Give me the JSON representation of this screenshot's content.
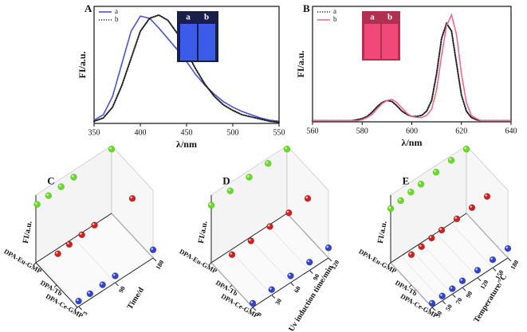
{
  "chart_data": [
    {
      "type": "line",
      "label": "A",
      "x_label": "λ/nm",
      "y_label": "FI/a.u.",
      "inset_labels": [
        "a",
        "b"
      ],
      "xlim": [
        350,
        550
      ],
      "xticks": [
        350,
        400,
        450,
        500,
        550
      ],
      "ylim": [
        0,
        1.08
      ],
      "x": [
        350,
        360,
        370,
        380,
        390,
        400,
        410,
        420,
        430,
        440,
        450,
        460,
        470,
        480,
        490,
        500,
        510,
        520,
        530,
        540,
        550
      ],
      "series": [
        {
          "name": "a",
          "color": "#4a55c8",
          "style": "solid",
          "values": [
            0.03,
            0.08,
            0.25,
            0.55,
            0.85,
            0.99,
            0.97,
            0.88,
            0.78,
            0.68,
            0.57,
            0.45,
            0.35,
            0.27,
            0.2,
            0.15,
            0.11,
            0.08,
            0.05,
            0.03,
            0.02
          ]
        },
        {
          "name": "b",
          "color": "#222222",
          "style": "dotted",
          "values": [
            0.02,
            0.05,
            0.15,
            0.35,
            0.6,
            0.85,
            0.97,
            1.0,
            0.95,
            0.83,
            0.66,
            0.5,
            0.36,
            0.25,
            0.17,
            0.12,
            0.08,
            0.06,
            0.04,
            0.02,
            0.01
          ]
        }
      ]
    },
    {
      "type": "line",
      "label": "B",
      "x_label": "λ/nm",
      "y_label": "FI/a.u.",
      "inset_labels": [
        "a",
        "b"
      ],
      "xlim": [
        560,
        640
      ],
      "xticks": [
        560,
        580,
        600,
        620,
        640
      ],
      "ylim": [
        0,
        1.08
      ],
      "x": [
        560,
        562,
        564,
        566,
        568,
        570,
        572,
        574,
        576,
        578,
        580,
        582,
        584,
        586,
        588,
        590,
        592,
        594,
        596,
        598,
        600,
        602,
        604,
        606,
        608,
        610,
        612,
        614,
        616,
        618,
        620,
        622,
        624,
        626,
        628,
        630,
        632,
        634,
        636,
        638,
        640
      ],
      "series": [
        {
          "name": "a",
          "color": "#222222",
          "style": "dotted",
          "values": [
            0.01,
            0.01,
            0.01,
            0.01,
            0.01,
            0.01,
            0.01,
            0.01,
            0.01,
            0.02,
            0.03,
            0.05,
            0.09,
            0.14,
            0.18,
            0.2,
            0.19,
            0.15,
            0.1,
            0.07,
            0.05,
            0.05,
            0.06,
            0.1,
            0.2,
            0.45,
            0.78,
            0.92,
            0.85,
            0.55,
            0.25,
            0.1,
            0.04,
            0.02,
            0.01,
            0.01,
            0.01,
            0.01,
            0.01,
            0.01,
            0.01
          ]
        },
        {
          "name": "b",
          "color": "#f06a8a",
          "style": "solid",
          "values": [
            0.01,
            0.01,
            0.01,
            0.01,
            0.01,
            0.01,
            0.01,
            0.01,
            0.01,
            0.01,
            0.02,
            0.04,
            0.07,
            0.12,
            0.17,
            0.2,
            0.21,
            0.18,
            0.13,
            0.08,
            0.05,
            0.04,
            0.04,
            0.06,
            0.12,
            0.3,
            0.62,
            0.9,
            1.0,
            0.82,
            0.45,
            0.18,
            0.06,
            0.03,
            0.01,
            0.01,
            0.01,
            0.01,
            0.01,
            0.01,
            0.01
          ]
        }
      ]
    },
    {
      "type": "scatter3d",
      "label": "C",
      "z_label": "FI/a.u.",
      "x_label": "Time/d",
      "categories": [
        "DPA-Eu-GMP",
        "DPA-Tb",
        "DPA-Ce-GMP"
      ],
      "xlim": [
        0,
        180
      ],
      "xticks": [
        3,
        90,
        180
      ],
      "zlim": [
        0,
        1
      ],
      "x": [
        3,
        30,
        60,
        90,
        180
      ],
      "series": [
        {
          "color": "#66dd22",
          "values": [
            0.85,
            0.87,
            0.88,
            0.9,
            0.95
          ]
        },
        {
          "color": "#cc2222",
          "values": [
            0.45,
            0.48,
            0.5,
            0.52,
            0.55
          ]
        },
        {
          "color": "#3344cc",
          "values": [
            0.08,
            0.08,
            0.09,
            0.1,
            0.12
          ]
        }
      ]
    },
    {
      "type": "scatter3d",
      "label": "D",
      "z_label": "FI/a.u.",
      "x_label": "Uv induction time/min",
      "categories": [
        "DPA-Eu-GMP",
        "DPA-Tb",
        "DPA-Ce-GMP"
      ],
      "xlim": [
        0,
        120
      ],
      "xticks": [
        0,
        30,
        60,
        90,
        120
      ],
      "zlim": [
        0,
        1
      ],
      "x": [
        0,
        30,
        60,
        90,
        120
      ],
      "series": [
        {
          "color": "#66dd22",
          "values": [
            0.85,
            0.88,
            0.9,
            0.92,
            0.95
          ]
        },
        {
          "color": "#cc2222",
          "values": [
            0.45,
            0.47,
            0.5,
            0.52,
            0.55
          ]
        },
        {
          "color": "#3344cc",
          "values": [
            0.06,
            0.08,
            0.1,
            0.12,
            0.15
          ]
        }
      ]
    },
    {
      "type": "scatter3d",
      "label": "E",
      "z_label": "FI/a.u.",
      "x_label": "Temperature/°C",
      "categories": [
        "DPA-Eu-GMP",
        "DPA-Tb",
        "DPA-Ce-GMP"
      ],
      "xlim": [
        30,
        180
      ],
      "xticks": [
        30,
        50,
        70,
        90,
        120,
        150,
        180
      ],
      "zlim": [
        0,
        1
      ],
      "x": [
        30,
        50,
        70,
        90,
        120,
        150,
        180
      ],
      "series": [
        {
          "color": "#66dd22",
          "values": [
            0.8,
            0.82,
            0.85,
            0.87,
            0.9,
            0.93,
            0.95
          ]
        },
        {
          "color": "#cc2222",
          "values": [
            0.45,
            0.47,
            0.5,
            0.52,
            0.54,
            0.56,
            0.58
          ]
        },
        {
          "color": "#3344cc",
          "values": [
            0.06,
            0.07,
            0.08,
            0.1,
            0.11,
            0.12,
            0.14
          ]
        }
      ]
    }
  ]
}
